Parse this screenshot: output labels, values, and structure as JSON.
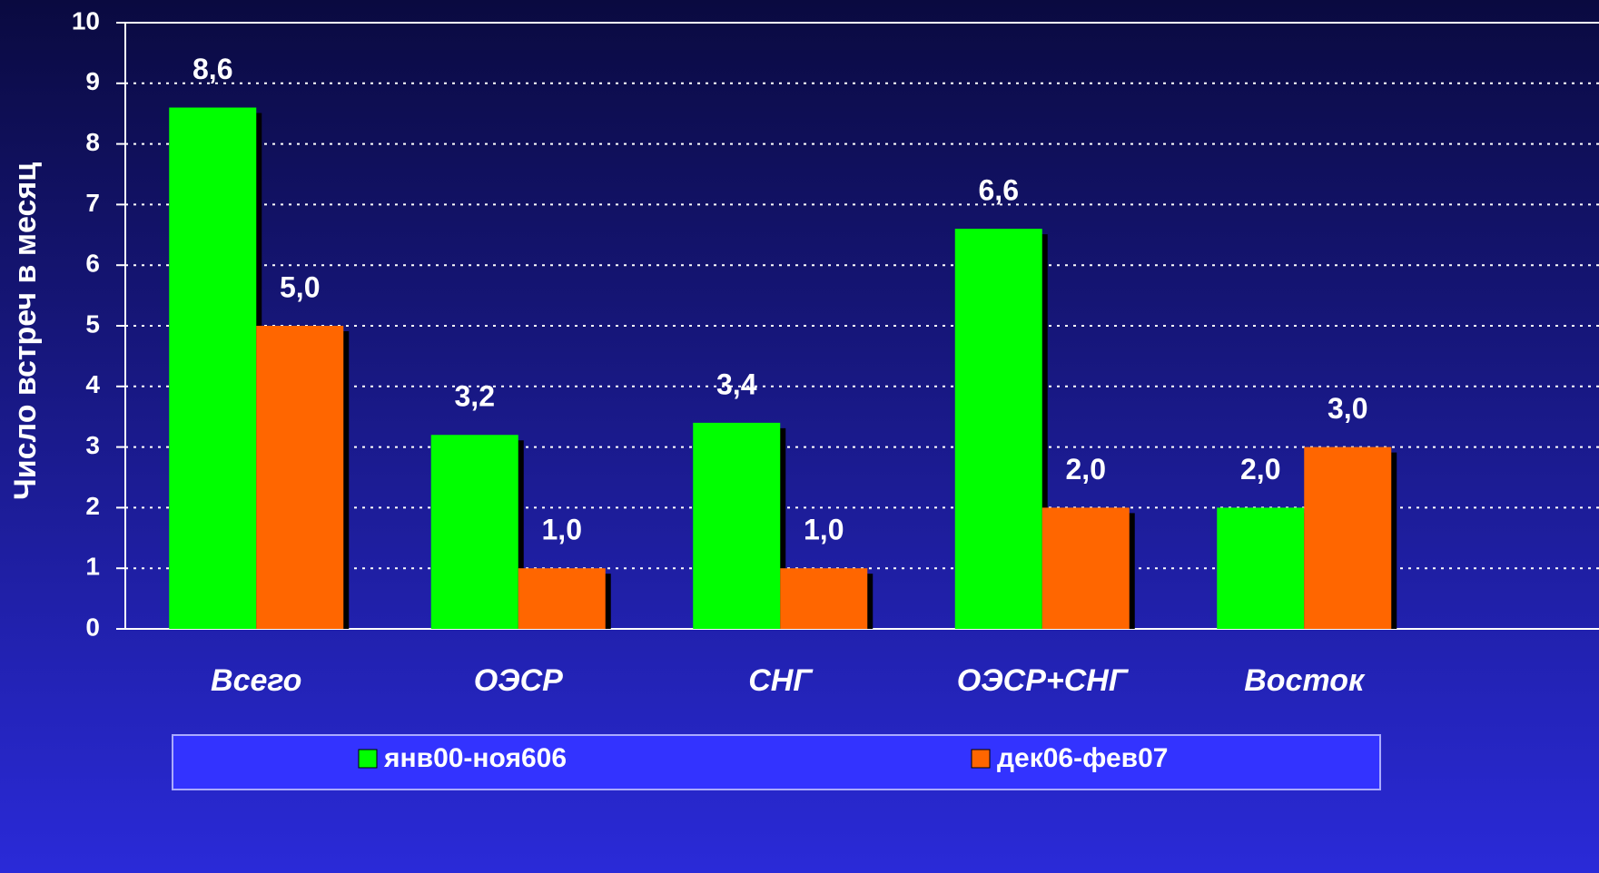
{
  "chart_data": {
    "type": "bar",
    "y_label": "Число встреч в месяц",
    "categories": [
      "Всего",
      "ОЭСР",
      "СНГ",
      "ОЭСР+СНГ",
      "Восток"
    ],
    "series": [
      {
        "name": "янв00-ноя606",
        "color": "#00ff00",
        "values": [
          8.6,
          3.2,
          3.4,
          6.6,
          2.0
        ],
        "value_labels": [
          "8,6",
          "3,2",
          "3,4",
          "6,6",
          "2,0"
        ]
      },
      {
        "name": "дек06-фев07",
        "color": "#ff6600",
        "values": [
          5.0,
          1.0,
          1.0,
          2.0,
          3.0
        ],
        "value_labels": [
          "5,0",
          "1,0",
          "1,0",
          "2,0",
          "3,0"
        ]
      }
    ],
    "ylim": [
      0,
      10
    ],
    "yticks": [
      0,
      1,
      2,
      3,
      4,
      5,
      6,
      7,
      8,
      9,
      10
    ],
    "grid": true,
    "legend": "bottom"
  }
}
